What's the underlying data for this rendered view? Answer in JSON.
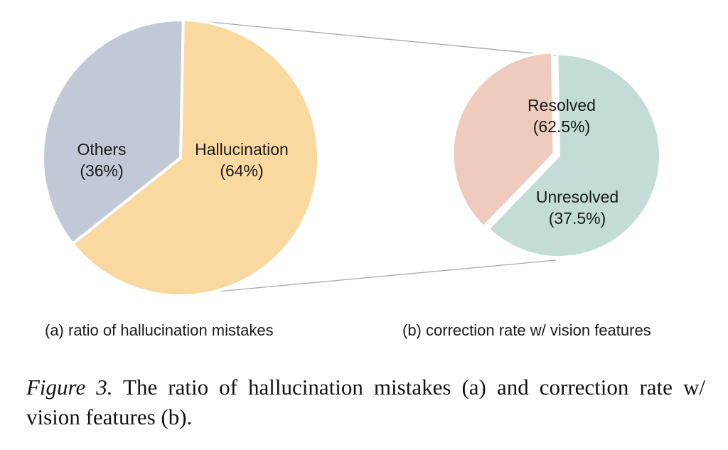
{
  "chart_data": [
    {
      "type": "pie",
      "title": "(a) ratio of hallucination mistakes",
      "slices": [
        {
          "label": "Hallucination",
          "display": "(64%)",
          "value": 64,
          "color": "#f9d9a0"
        },
        {
          "label": "Others",
          "display": "(36%)",
          "value": 36,
          "color": "#c1c9d6"
        }
      ]
    },
    {
      "type": "pie",
      "title": "(b) correction rate w/ vision features",
      "slices": [
        {
          "label": "Resolved",
          "display": "(62.5%)",
          "value": 62.5,
          "color": "#c3dcd8"
        },
        {
          "label": "Unresolved",
          "display": "(37.5%)",
          "value": 37.5,
          "color": "#efcbbd"
        }
      ]
    }
  ],
  "caption": {
    "figure_number": "Figure 3.",
    "text": " The ratio of hallucination mistakes (a) and correction rate w/ vision features (b)."
  },
  "colors": {
    "connector": "#a6a6a6",
    "separator": "#ffffff"
  }
}
